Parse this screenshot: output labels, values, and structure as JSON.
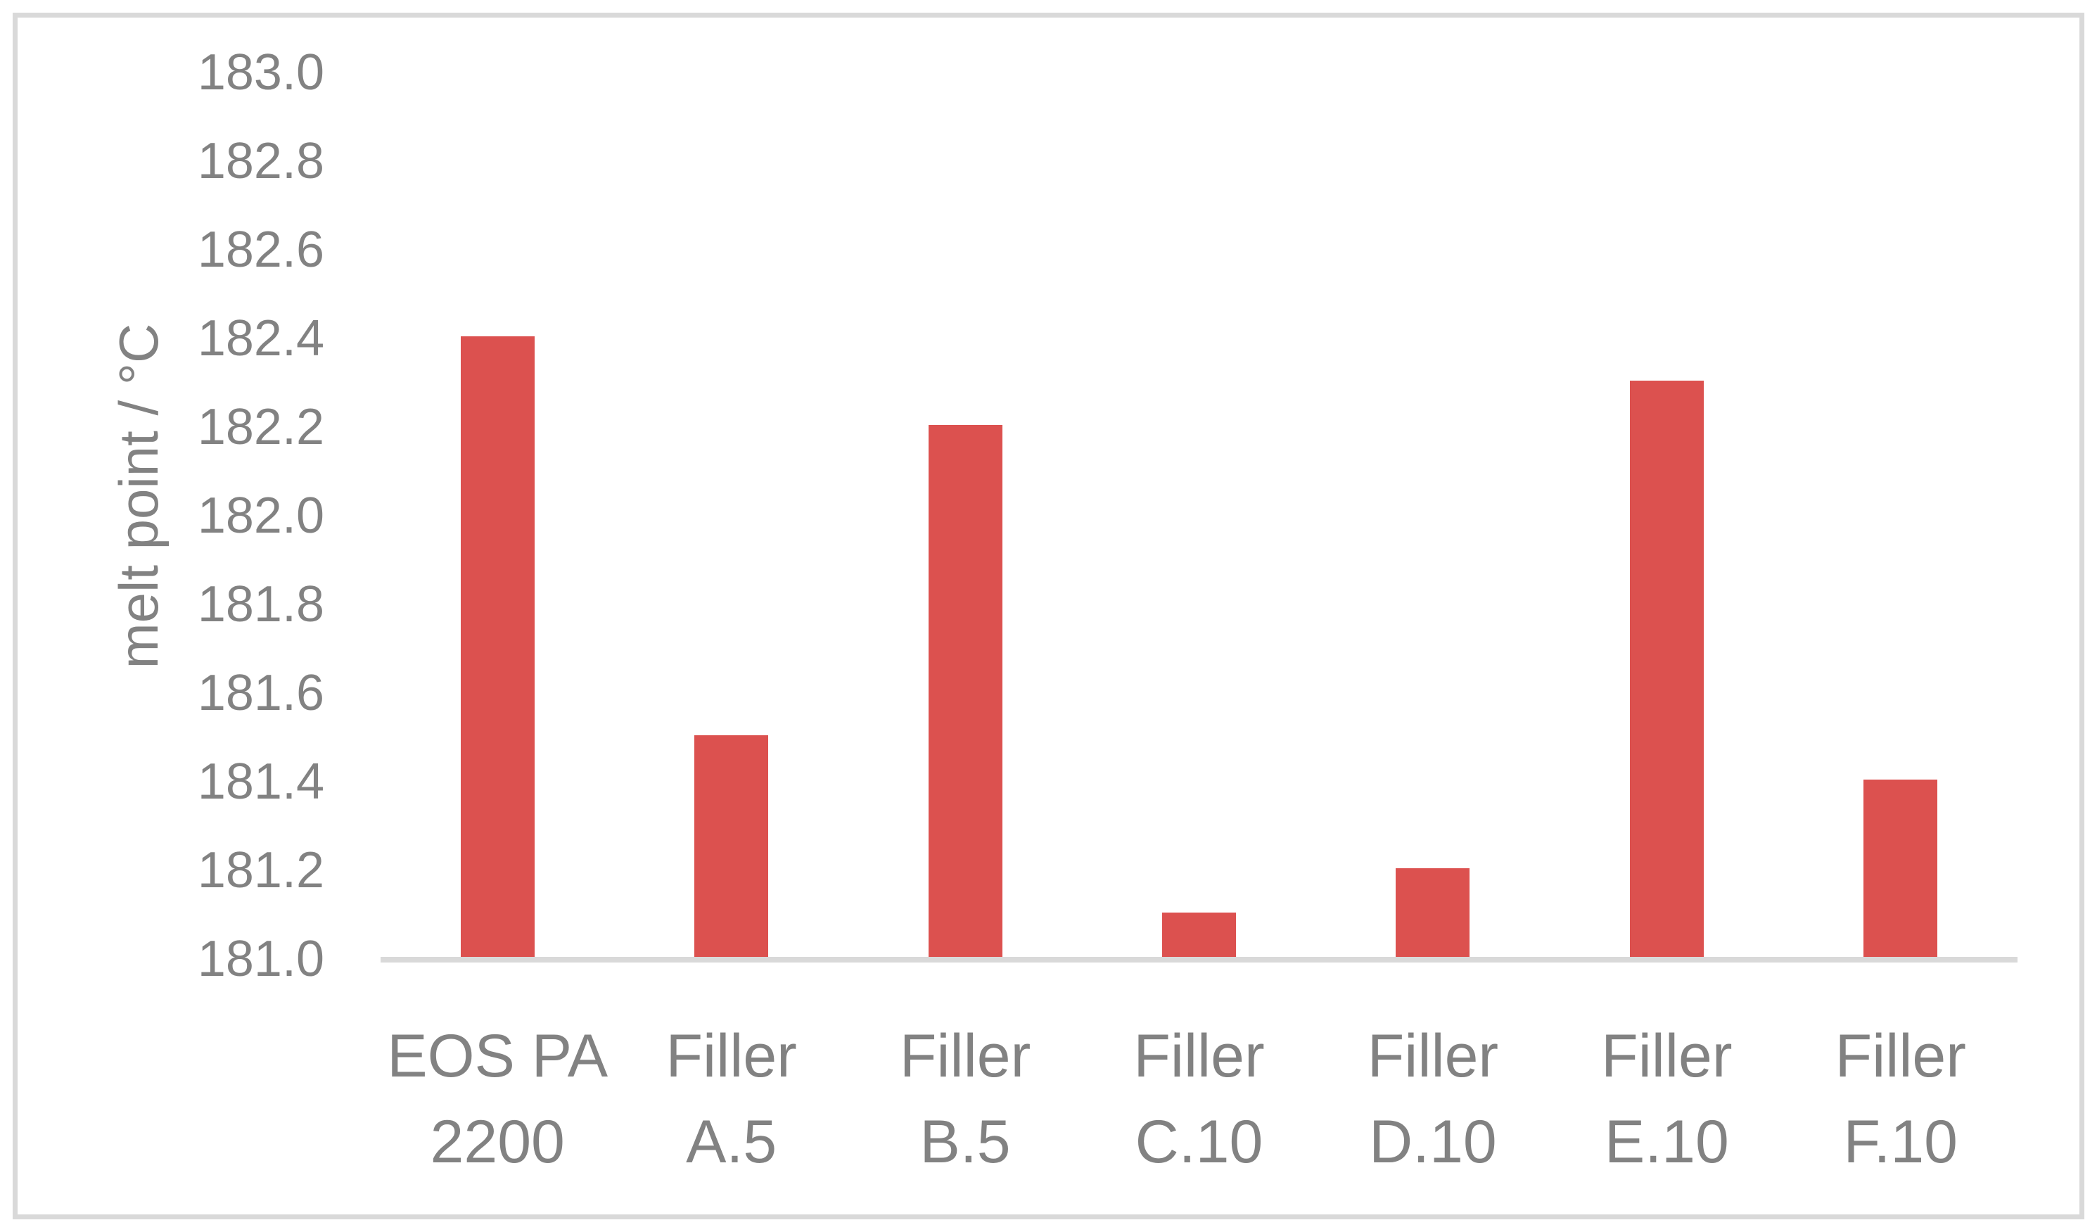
{
  "chart_data": {
    "type": "bar",
    "title": "",
    "xlabel": "",
    "ylabel": "melt point / °C",
    "categories": [
      "EOS PA\n2200",
      "Filler\nA.5",
      "Filler\nB.5",
      "Filler\nC.10",
      "Filler\nD.10",
      "Filler\nE.10",
      "Filler\nF.10"
    ],
    "values": [
      182.4,
      181.5,
      182.2,
      181.1,
      181.2,
      182.3,
      181.4
    ],
    "ylim": [
      181.0,
      183.0
    ],
    "ytick_step": 0.2,
    "yticks": [
      "183.0",
      "182.8",
      "182.6",
      "182.4",
      "182.2",
      "182.0",
      "181.8",
      "181.6",
      "181.4",
      "181.2",
      "181.0"
    ],
    "grid": false,
    "legend_position": "none",
    "colors": {
      "bar": "#DC514F",
      "axis_text": "#828282",
      "baseline": "#D9D9D9",
      "border": "#D9D9D9",
      "background": "#FFFFFF"
    }
  }
}
